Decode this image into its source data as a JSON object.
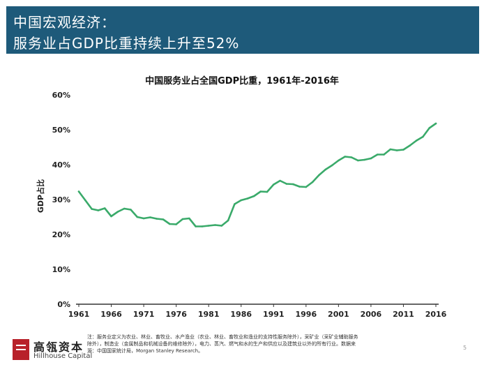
{
  "header": {
    "line1": "中国宏观经济：",
    "line2": "服务业占GDP比重持续上升至52%"
  },
  "chart_data": {
    "type": "line",
    "title": "中国服务业占全国GDP比重，1961年-2016年",
    "xlabel": "",
    "ylabel": "GDP占比",
    "xlim": [
      1961,
      2016
    ],
    "ylim": [
      0,
      60
    ],
    "x_ticks": [
      "1961",
      "1966",
      "1971",
      "1976",
      "1981",
      "1986",
      "1991",
      "1996",
      "2001",
      "2006",
      "2011",
      "2016"
    ],
    "y_ticks": [
      "0%",
      "10%",
      "20%",
      "30%",
      "40%",
      "50%",
      "60%"
    ],
    "series": [
      {
        "name": "服务业占GDP比重",
        "color": "#3aaa6a",
        "x": [
          1961,
          1962,
          1963,
          1964,
          1965,
          1966,
          1967,
          1968,
          1969,
          1970,
          1971,
          1972,
          1973,
          1974,
          1975,
          1976,
          1977,
          1978,
          1979,
          1980,
          1981,
          1982,
          1983,
          1984,
          1985,
          1986,
          1987,
          1988,
          1989,
          1990,
          1991,
          1992,
          1993,
          1994,
          1995,
          1996,
          1997,
          1998,
          1999,
          2000,
          2001,
          2002,
          2003,
          2004,
          2005,
          2006,
          2007,
          2008,
          2009,
          2010,
          2011,
          2012,
          2013,
          2014,
          2015,
          2016
        ],
        "values": [
          32.3,
          29.8,
          27.3,
          26.9,
          27.5,
          25.2,
          26.5,
          27.4,
          27.1,
          25.0,
          24.6,
          24.9,
          24.5,
          24.3,
          23.0,
          22.9,
          24.4,
          24.6,
          22.3,
          22.3,
          22.5,
          22.7,
          22.5,
          24.0,
          28.7,
          29.8,
          30.3,
          31.0,
          32.3,
          32.2,
          34.3,
          35.4,
          34.5,
          34.4,
          33.7,
          33.6,
          35.0,
          37.0,
          38.6,
          39.8,
          41.2,
          42.3,
          42.1,
          41.2,
          41.4,
          41.8,
          42.9,
          42.9,
          44.4,
          44.1,
          44.3,
          45.5,
          46.9,
          48.0,
          50.5,
          51.8
        ]
      }
    ]
  },
  "logo": {
    "name_cn": "高瓴资本",
    "name_en": "Hillhouse Capital"
  },
  "note": {
    "line1": "注：服务业定义为农业、林业、畜牧业、水产渔业（农业、林业、畜牧业和渔业的支持性服务除外），采矿业（采矿业辅助服务",
    "line2": "除外），制造业（金属制品和机械设备的维修除外），电力、蒸汽、燃气和水的生产和供应以及建筑业以外的所有行业。数据来",
    "line3": "源：中国国家统计局，Morgan Stanley Research。"
  },
  "page_number": "5"
}
